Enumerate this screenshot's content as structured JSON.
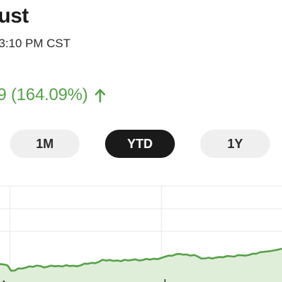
{
  "header": {
    "title": "ust",
    "timestamp": "3:10 PM CST"
  },
  "price_change": {
    "text": "9 (164.09%)",
    "direction": "up",
    "color": "#56a04a",
    "arrow_icon": "arrow-up-icon"
  },
  "range_selector": {
    "options": [
      {
        "label": "1M",
        "active": false
      },
      {
        "label": "YTD",
        "active": true
      },
      {
        "label": "1Y",
        "active": false
      }
    ]
  },
  "chart_data": {
    "type": "area",
    "line_color": "#56a04a",
    "fill_color": "#dfeed9",
    "grid": true,
    "y": [
      51.5,
      51.2,
      51.0,
      50.4,
      47.0,
      47.2,
      48.5,
      48.4,
      49.0,
      49.8,
      49.5,
      50.3,
      50.0,
      49.1,
      49.6,
      50.3,
      49.8,
      50.1,
      49.7,
      50.5,
      50.0,
      50.2,
      49.8,
      50.4,
      51.5,
      51.4,
      52.0,
      51.8,
      52.6,
      53.9,
      53.4,
      53.8,
      53.2,
      53.5,
      53.0,
      53.9,
      53.5,
      53.8,
      54.2,
      53.4,
      53.8,
      54.5,
      54.0,
      54.6,
      54.3,
      55.0,
      55.8,
      56.5,
      56.4,
      57.3,
      57.6,
      57.1,
      57.2,
      56.5,
      56.9,
      56.0,
      54.7,
      54.8,
      55.2,
      54.7,
      55.3,
      55.6,
      55.5,
      56.3,
      56.1,
      55.9,
      56.8,
      56.7,
      56.5,
      56.9,
      57.7,
      57.7,
      58.6,
      58.9,
      59.1,
      59.4,
      59.8,
      60.3,
      60.8,
      61.5
    ]
  }
}
